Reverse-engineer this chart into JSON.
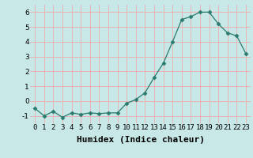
{
  "x": [
    0,
    1,
    2,
    3,
    4,
    5,
    6,
    7,
    8,
    9,
    10,
    11,
    12,
    13,
    14,
    15,
    16,
    17,
    18,
    19,
    20,
    21,
    22,
    23
  ],
  "y": [
    -0.5,
    -1.0,
    -0.7,
    -1.1,
    -0.8,
    -0.9,
    -0.8,
    -0.85,
    -0.8,
    -0.8,
    -0.15,
    0.1,
    0.55,
    1.6,
    2.55,
    4.0,
    5.5,
    5.7,
    6.0,
    6.0,
    5.2,
    4.6,
    4.4,
    3.2
  ],
  "line_color": "#2a7a6e",
  "marker": "D",
  "marker_size": 2.5,
  "bg_color": "#c8e8e8",
  "grid_color": "#e8b4b4",
  "xlabel": "Humidex (Indice chaleur)",
  "ylabel": "",
  "ylim": [
    -1.5,
    6.5
  ],
  "xlim": [
    -0.5,
    23.5
  ],
  "yticks": [
    -1,
    0,
    1,
    2,
    3,
    4,
    5,
    6
  ],
  "xticks": [
    0,
    1,
    2,
    3,
    4,
    5,
    6,
    7,
    8,
    9,
    10,
    11,
    12,
    13,
    14,
    15,
    16,
    17,
    18,
    19,
    20,
    21,
    22,
    23
  ],
  "tick_label_size": 6.5,
  "xlabel_size": 8,
  "xlabel_weight": "bold"
}
